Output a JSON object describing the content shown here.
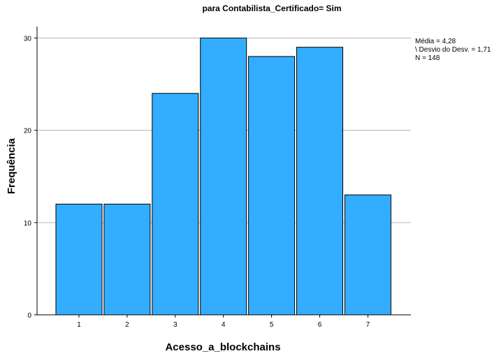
{
  "chart_data": {
    "type": "bar",
    "title": "para Contabilista_Certificado= Sim",
    "xlabel": "Acesso_a_blockchains",
    "ylabel": "Frequência",
    "categories": [
      "1",
      "2",
      "3",
      "4",
      "5",
      "6",
      "7"
    ],
    "values": [
      12,
      12,
      24,
      30,
      28,
      29,
      13
    ],
    "ylim": [
      0,
      32
    ],
    "yticks": [
      "0",
      "10",
      "20",
      "30"
    ],
    "grid": "horizontal",
    "bar_color": "#33adff",
    "bar_edge_color": "#000000",
    "stats": {
      "mean": "Média = 4,28",
      "std": "\\ Desvio do Desv. = 1,71",
      "n": "N = 148"
    }
  }
}
